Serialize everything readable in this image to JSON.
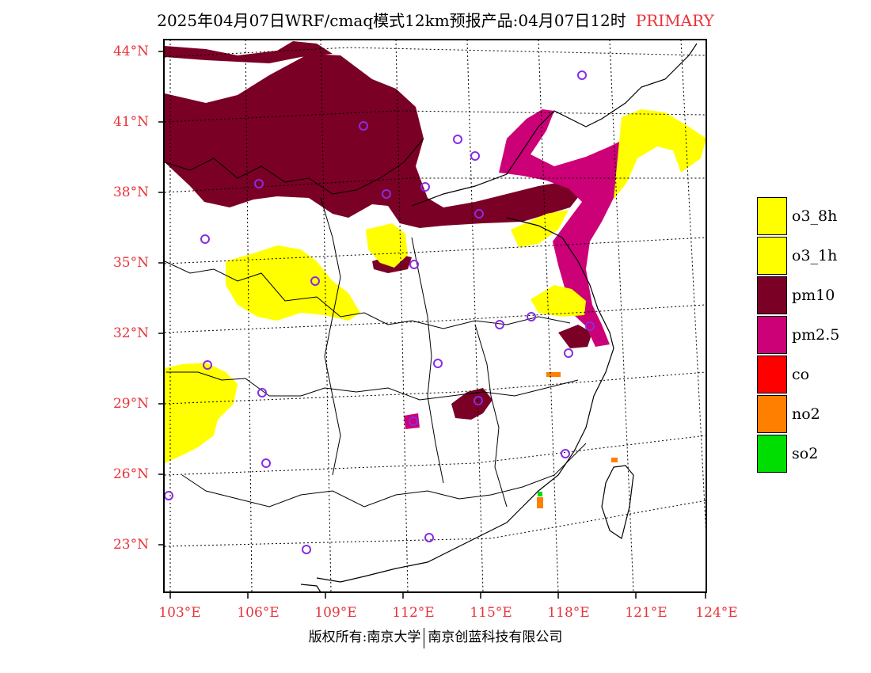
{
  "title": {
    "text": "2025年04月07日WRF/cmaq模式12km预报产品:04月07日12时",
    "tag": "PRIMARY"
  },
  "axes": {
    "lat_labels": [
      "44°N",
      "41°N",
      "38°N",
      "35°N",
      "32°N",
      "29°N",
      "26°N",
      "23°N"
    ],
    "lon_labels": [
      "103°E",
      "106°E",
      "109°E",
      "112°E",
      "115°E",
      "118°E",
      "121°E",
      "124°E"
    ]
  },
  "legend": {
    "items": [
      {
        "label": "o3_8h",
        "color": "#ffff00"
      },
      {
        "label": "o3_1h",
        "color": "#ffff00"
      },
      {
        "label": "pm10",
        "color": "#7a0026"
      },
      {
        "label": "pm2.5",
        "color": "#cc0077"
      },
      {
        "label": "co",
        "color": "#ff0000"
      },
      {
        "label": "no2",
        "color": "#ff7f00"
      },
      {
        "label": "so2",
        "color": "#00dd00"
      }
    ]
  },
  "footer": {
    "left": "版权所有:南京大学",
    "right": "南京创蓝科技有限公司"
  },
  "colors": {
    "pm10": "#7a0026",
    "pm25": "#cc0077",
    "o3": "#ffff00",
    "no2": "#ff7f00",
    "so2": "#00dd00",
    "axis_label": "#e8333a",
    "station_marker": "#8a2be2"
  }
}
